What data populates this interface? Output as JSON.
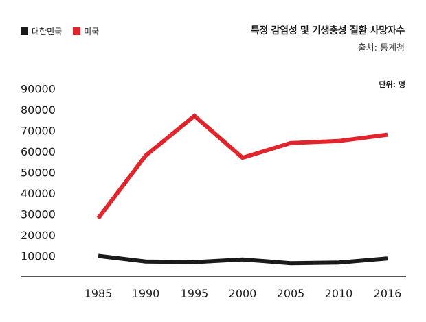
{
  "legend": {
    "korea": {
      "label": "대한민국",
      "color": "#1a1a1a"
    },
    "usa": {
      "label": "미국",
      "color": "#e0262c"
    }
  },
  "title": "특정 감염성 및 기생충성 질환 사망자수",
  "source": "출처: 통계청",
  "unit": "단위: 명",
  "chart_data": {
    "type": "line",
    "title": "특정 감염성 및 기생충성 질환 사망자수",
    "xlabel": "",
    "ylabel": "",
    "categories": [
      "1985",
      "1990",
      "1995",
      "2000",
      "2005",
      "2010",
      "2016"
    ],
    "y_ticks": [
      "90000",
      "80000",
      "70000",
      "60000",
      "50000",
      "40000",
      "30000",
      "20000",
      "10000"
    ],
    "ylim": [
      0,
      90000
    ],
    "grid": false,
    "legend_position": "top-left",
    "series": [
      {
        "name": "대한민국",
        "color": "#1a1a1a",
        "values": [
          10000,
          7300,
          7000,
          8300,
          6500,
          6800,
          8800
        ]
      },
      {
        "name": "미국",
        "color": "#e0262c",
        "values": [
          28000,
          58000,
          77000,
          57000,
          64000,
          65000,
          68000
        ]
      }
    ]
  }
}
